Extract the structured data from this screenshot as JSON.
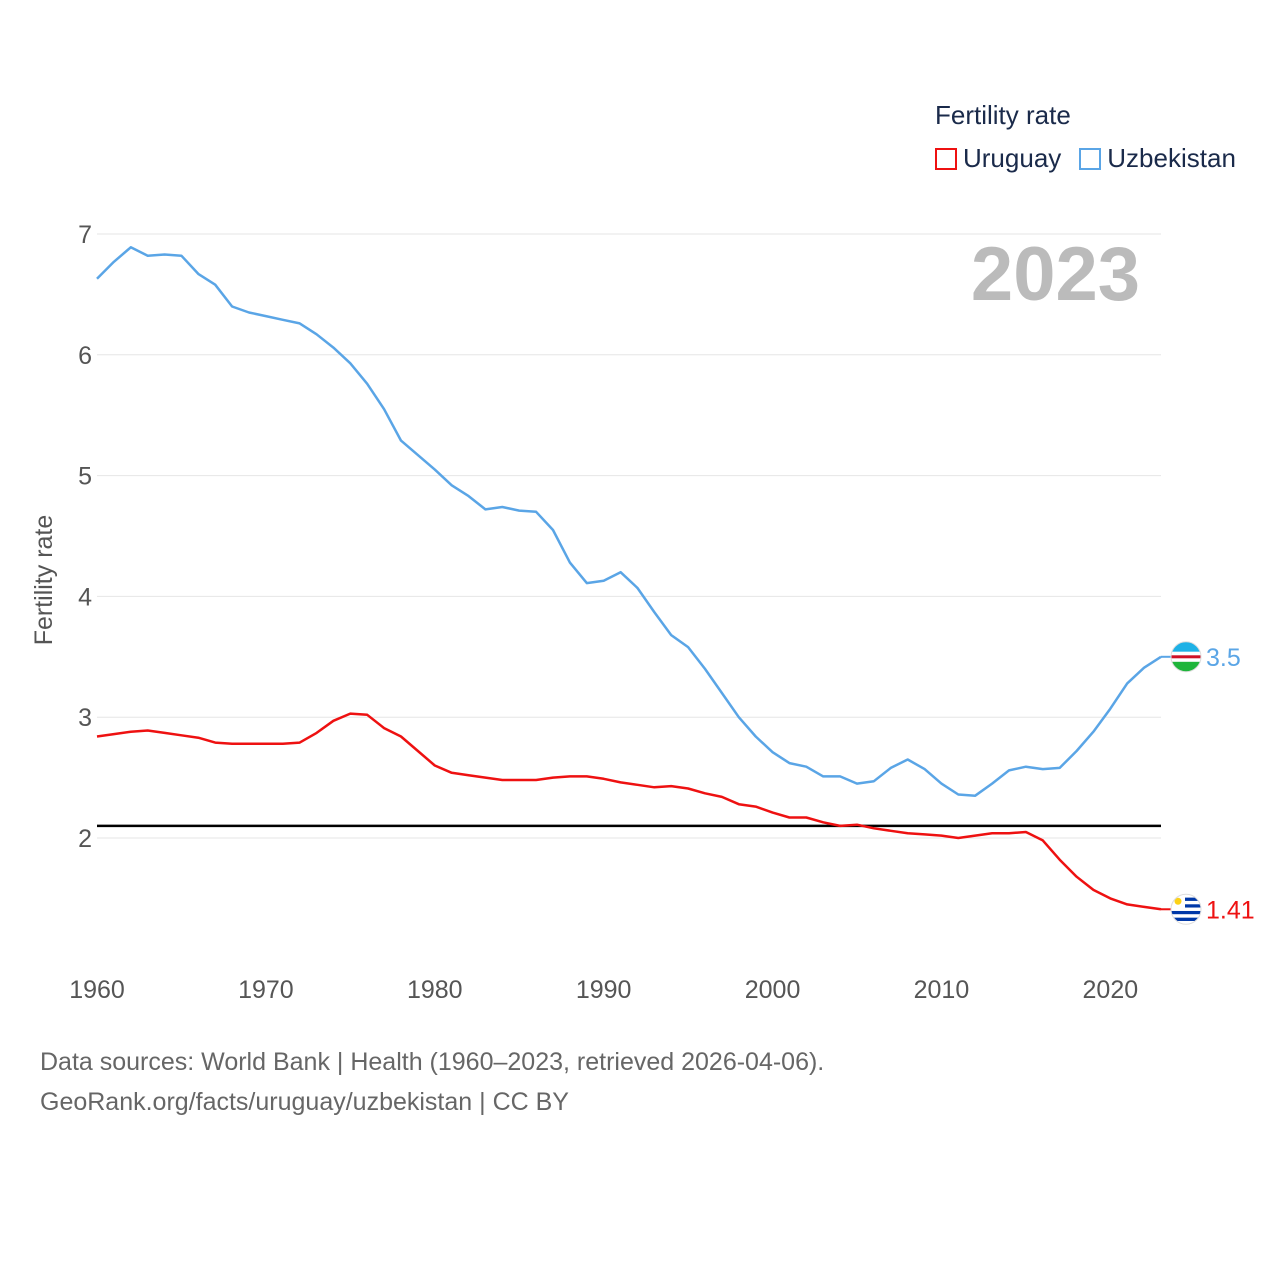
{
  "legend": {
    "title": "Fertility rate",
    "items": [
      {
        "label": "Uruguay",
        "color": "#ee1111"
      },
      {
        "label": "Uzbekistan",
        "color": "#5aa5e6"
      }
    ]
  },
  "year_label": "2023",
  "footer": {
    "line1": "Data sources: World Bank | Health (1960–2023, retrieved 2026-04-06).",
    "line2": "GeoRank.org/facts/uruguay/uzbekistan | CC BY"
  },
  "chart_data": {
    "type": "line",
    "ylabel": "Fertility rate",
    "xlabel": "",
    "xlim": [
      1960,
      2023
    ],
    "ylim": [
      1.0,
      7.0
    ],
    "x_ticks": [
      "1960",
      "1970",
      "1980",
      "1990",
      "2000",
      "2010",
      "2020"
    ],
    "y_ticks": [
      "2",
      "3",
      "4",
      "5",
      "6",
      "7"
    ],
    "reference_line": 2.1,
    "x": [
      1960,
      1961,
      1962,
      1963,
      1964,
      1965,
      1966,
      1967,
      1968,
      1969,
      1970,
      1971,
      1972,
      1973,
      1974,
      1975,
      1976,
      1977,
      1978,
      1979,
      1980,
      1981,
      1982,
      1983,
      1984,
      1985,
      1986,
      1987,
      1988,
      1989,
      1990,
      1991,
      1992,
      1993,
      1994,
      1995,
      1996,
      1997,
      1998,
      1999,
      2000,
      2001,
      2002,
      2003,
      2004,
      2005,
      2006,
      2007,
      2008,
      2009,
      2010,
      2011,
      2012,
      2013,
      2014,
      2015,
      2016,
      2017,
      2018,
      2019,
      2020,
      2021,
      2022,
      2023
    ],
    "series": [
      {
        "name": "Uruguay",
        "color": "#ee1111",
        "end_label": "1.41",
        "values": [
          2.84,
          2.86,
          2.88,
          2.89,
          2.87,
          2.85,
          2.83,
          2.79,
          2.78,
          2.78,
          2.78,
          2.78,
          2.79,
          2.87,
          2.97,
          3.03,
          3.02,
          2.91,
          2.84,
          2.72,
          2.6,
          2.54,
          2.52,
          2.5,
          2.48,
          2.48,
          2.48,
          2.5,
          2.51,
          2.51,
          2.49,
          2.46,
          2.44,
          2.42,
          2.43,
          2.41,
          2.37,
          2.34,
          2.28,
          2.26,
          2.21,
          2.17,
          2.17,
          2.13,
          2.1,
          2.11,
          2.08,
          2.06,
          2.04,
          2.03,
          2.02,
          2.0,
          2.02,
          2.04,
          2.04,
          2.05,
          1.98,
          1.82,
          1.68,
          1.57,
          1.5,
          1.45,
          1.43,
          1.41
        ]
      },
      {
        "name": "Uzbekistan",
        "color": "#5aa5e6",
        "end_label": "3.5",
        "values": [
          6.63,
          6.77,
          6.89,
          6.82,
          6.83,
          6.82,
          6.67,
          6.58,
          6.4,
          6.35,
          6.32,
          6.29,
          6.26,
          6.17,
          6.06,
          5.93,
          5.76,
          5.55,
          5.29,
          5.17,
          5.05,
          4.92,
          4.83,
          4.72,
          4.74,
          4.71,
          4.7,
          4.55,
          4.28,
          4.11,
          4.13,
          4.2,
          4.07,
          3.87,
          3.68,
          3.58,
          3.4,
          3.2,
          3.0,
          2.84,
          2.71,
          2.62,
          2.59,
          2.51,
          2.51,
          2.45,
          2.47,
          2.58,
          2.65,
          2.57,
          2.45,
          2.36,
          2.35,
          2.45,
          2.56,
          2.59,
          2.57,
          2.58,
          2.72,
          2.88,
          3.07,
          3.28,
          3.41,
          3.5
        ]
      }
    ]
  }
}
